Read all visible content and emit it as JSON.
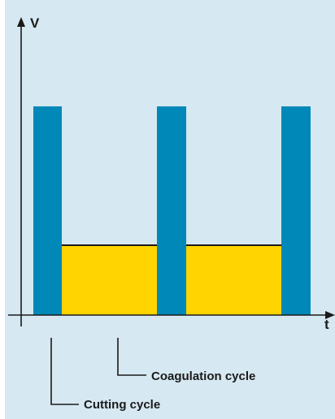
{
  "diagram": {
    "y_axis_label": "V",
    "x_axis_label": "t",
    "labels": {
      "coagulation": "Coagulation cycle",
      "cutting": "Cutting cycle"
    },
    "colors": {
      "background": "#d6e8f1",
      "cutting_pulse": "#0088b8",
      "coagulation_fill": "#ffd400",
      "axis": "#1a1a1a"
    }
  }
}
